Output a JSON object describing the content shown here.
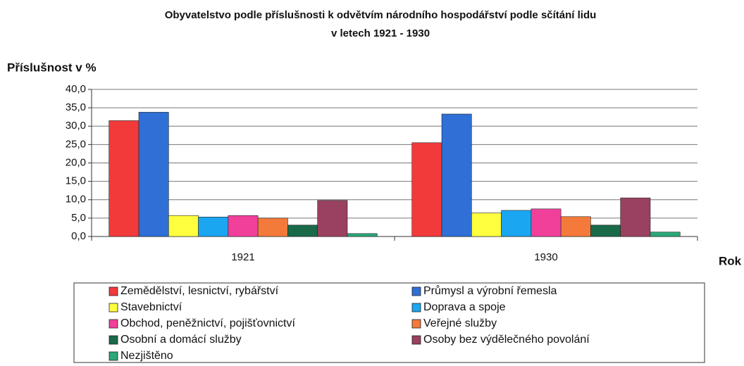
{
  "chart_data": {
    "type": "bar",
    "title": "Obyvatelstvo podle příslušnosti k odvětvím národního hospodářství podle sčítání lidu",
    "subtitle": "v letech 1921 - 1930",
    "y_label": "Příslušnost v %",
    "x_label": "Rok",
    "categories": [
      "1921",
      "1930"
    ],
    "series": [
      {
        "name": "Zemědělství, lesnictví, rybářství",
        "color": "#f23a3a",
        "values": [
          31.5,
          25.5
        ]
      },
      {
        "name": "Průmysl a výrobní řemesla",
        "color": "#2f6fd6",
        "values": [
          33.8,
          33.3
        ]
      },
      {
        "name": "Stavebnictví",
        "color": "#ffff40",
        "values": [
          5.7,
          6.4
        ]
      },
      {
        "name": "Doprava a spoje",
        "color": "#1aa6f0",
        "values": [
          5.3,
          7.1
        ]
      },
      {
        "name": "Obchod, peněžnictví, pojišťovnictví",
        "color": "#f0409a",
        "values": [
          5.7,
          7.5
        ]
      },
      {
        "name": "Veřejné služby",
        "color": "#f37a3a",
        "values": [
          5.0,
          5.4
        ]
      },
      {
        "name": "Osobní a domácí služby",
        "color": "#1a6a4a",
        "values": [
          3.1,
          3.1
        ]
      },
      {
        "name": "Osoby bez výdělečného povolání",
        "color": "#9a4060",
        "values": [
          9.8,
          10.5
        ]
      },
      {
        "name": "Nezjištěno",
        "color": "#2aa878",
        "values": [
          0.8,
          1.2
        ]
      }
    ],
    "ylim": [
      0,
      40
    ],
    "yticks": [
      {
        "value": 0,
        "label": "0,0"
      },
      {
        "value": 5,
        "label": "5,0"
      },
      {
        "value": 10,
        "label": "10,0"
      },
      {
        "value": 15,
        "label": "15,0"
      },
      {
        "value": 20,
        "label": "20,0"
      },
      {
        "value": 25,
        "label": "25,0"
      },
      {
        "value": 30,
        "label": "30,0"
      },
      {
        "value": 35,
        "label": "35,0"
      },
      {
        "value": 40,
        "label": "40,0"
      }
    ],
    "grid": true
  }
}
